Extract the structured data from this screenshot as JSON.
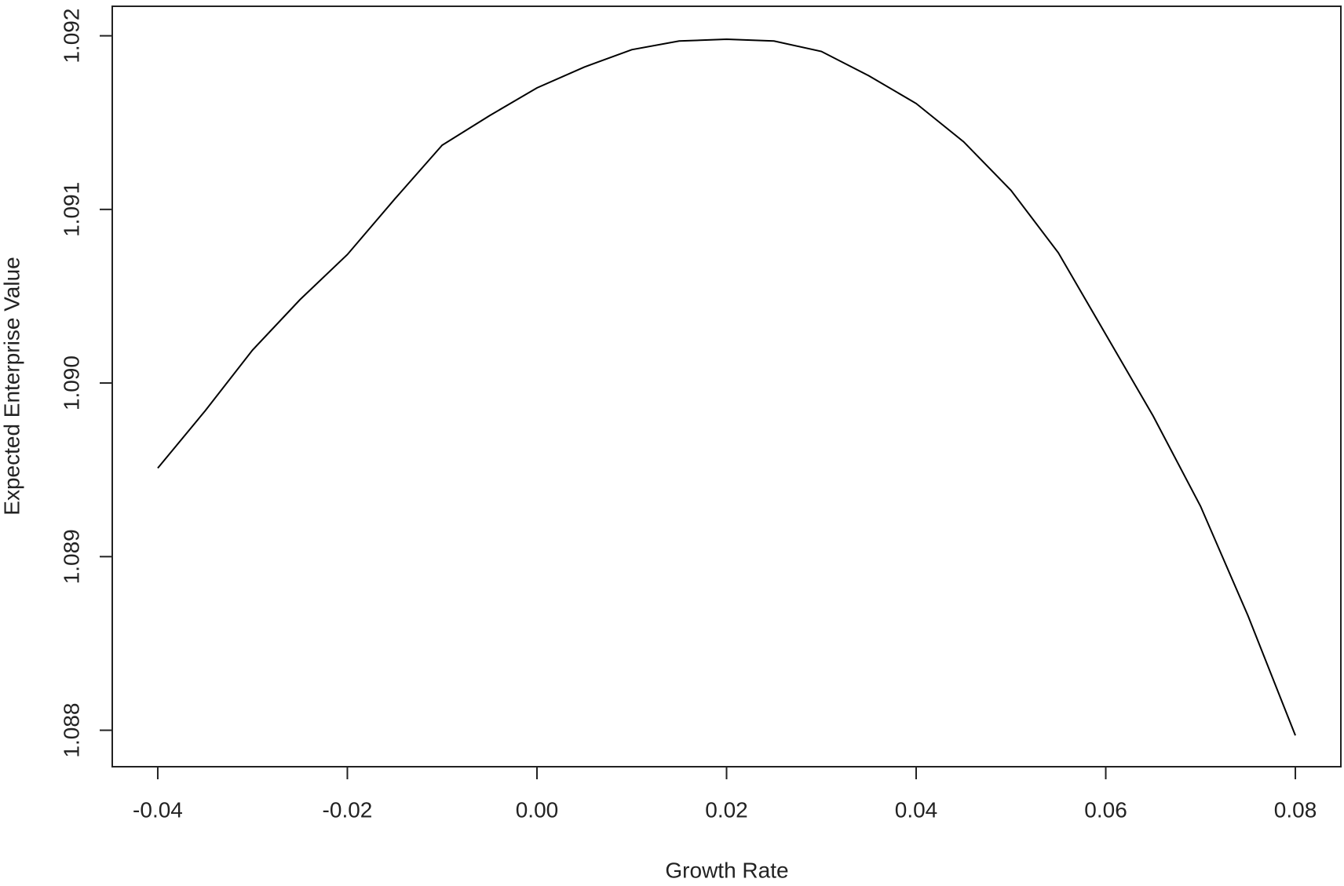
{
  "chart_data": {
    "type": "line",
    "x_label": "Growth Rate",
    "y_label": "Expected Enterprise Value",
    "x": [
      -0.04,
      -0.035,
      -0.03,
      -0.025,
      -0.02,
      -0.015,
      -0.01,
      -0.005,
      0.0,
      0.005,
      0.01,
      0.015,
      0.02,
      0.025,
      0.03,
      0.035,
      0.04,
      0.045,
      0.05,
      0.055,
      0.06,
      0.065,
      0.07,
      0.075,
      0.08
    ],
    "series": [
      {
        "color": "#000000",
        "values": [
          1.08951,
          1.08984,
          1.09019,
          1.09048,
          1.09074,
          1.09106,
          1.09137,
          1.09154,
          1.0917,
          1.09182,
          1.09192,
          1.09197,
          1.09198,
          1.09197,
          1.09191,
          1.09177,
          1.09161,
          1.09139,
          1.09111,
          1.09075,
          1.09028,
          1.08981,
          1.08929,
          1.08866,
          1.08797
        ]
      }
    ],
    "xlim": [
      -0.0448,
      0.0848
    ],
    "ylim": [
      1.08779,
      1.09217
    ],
    "xticks": [
      -0.04,
      -0.02,
      {
        "value": 0,
        "label": "0.00"
      },
      0.02,
      0.04,
      0.06,
      0.08
    ],
    "yticks": [
      1.088,
      1.089,
      {
        "value": 1.09,
        "label": "1.090"
      },
      1.091,
      1.092
    ],
    "grid": false
  }
}
